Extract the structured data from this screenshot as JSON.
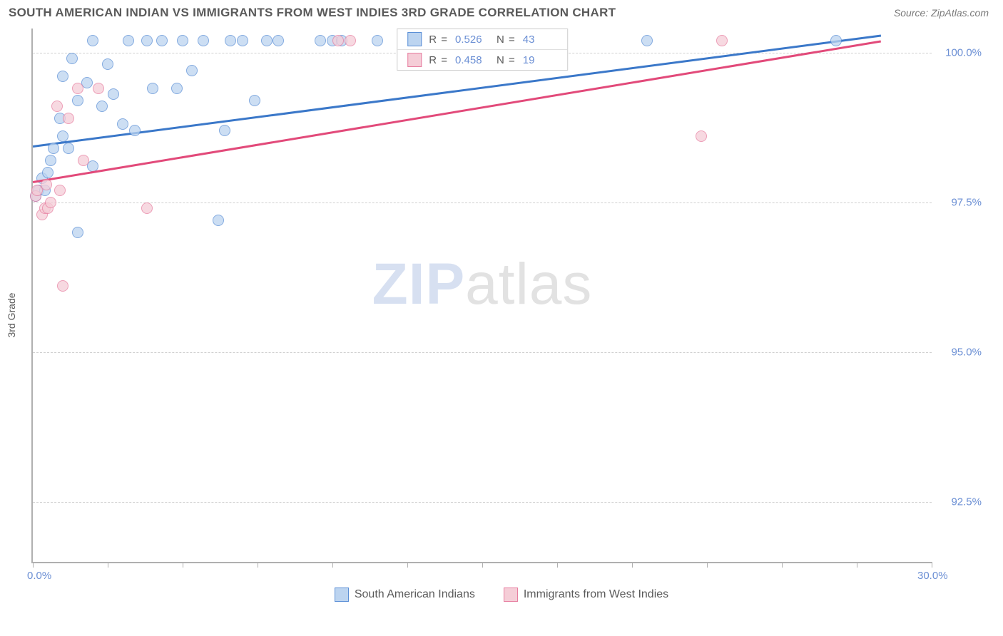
{
  "header": {
    "title": "SOUTH AMERICAN INDIAN VS IMMIGRANTS FROM WEST INDIES 3RD GRADE CORRELATION CHART",
    "source": "Source: ZipAtlas.com"
  },
  "chart": {
    "type": "scatter",
    "yaxis_title": "3rd Grade",
    "xlim": [
      0,
      30
    ],
    "ylim": [
      91.5,
      100.4
    ],
    "xtick_label_left": "0.0%",
    "xtick_label_right": "30.0%",
    "xticks": [
      0,
      2.5,
      5,
      7.5,
      10,
      12.5,
      15,
      17.5,
      20,
      22.5,
      25,
      27.5,
      30
    ],
    "yticks": [
      {
        "v": 100.0,
        "label": "100.0%"
      },
      {
        "v": 97.5,
        "label": "97.5%"
      },
      {
        "v": 95.0,
        "label": "95.0%"
      },
      {
        "v": 92.5,
        "label": "92.5%"
      }
    ],
    "grid_color": "#d0d0d0",
    "axis_color": "#b0b0b0",
    "background_color": "#ffffff",
    "marker_radius": 8,
    "series": [
      {
        "name": "South American Indians",
        "fill": "#bcd4f0",
        "stroke": "#5b8fd6",
        "stats": {
          "R": "0.526",
          "N": "43"
        },
        "trend": {
          "x1": 0,
          "y1": 98.45,
          "x2": 28.3,
          "y2": 100.3,
          "color": "#3b78c9"
        },
        "points": [
          [
            0.1,
            97.6
          ],
          [
            0.2,
            97.7
          ],
          [
            0.3,
            97.9
          ],
          [
            0.4,
            97.7
          ],
          [
            0.5,
            98.0
          ],
          [
            0.6,
            98.2
          ],
          [
            0.7,
            98.4
          ],
          [
            0.9,
            98.9
          ],
          [
            1.0,
            98.6
          ],
          [
            1.0,
            99.6
          ],
          [
            1.2,
            98.4
          ],
          [
            1.3,
            99.9
          ],
          [
            1.5,
            97.0
          ],
          [
            1.5,
            99.2
          ],
          [
            1.8,
            99.5
          ],
          [
            2.0,
            98.1
          ],
          [
            2.0,
            100.2
          ],
          [
            2.3,
            99.1
          ],
          [
            2.5,
            99.8
          ],
          [
            2.7,
            99.3
          ],
          [
            3.0,
            98.8
          ],
          [
            3.2,
            100.2
          ],
          [
            3.4,
            98.7
          ],
          [
            3.8,
            100.2
          ],
          [
            4.0,
            99.4
          ],
          [
            4.3,
            100.2
          ],
          [
            4.8,
            99.4
          ],
          [
            5.0,
            100.2
          ],
          [
            5.3,
            99.7
          ],
          [
            5.7,
            100.2
          ],
          [
            6.2,
            97.2
          ],
          [
            6.4,
            98.7
          ],
          [
            6.6,
            100.2
          ],
          [
            7.0,
            100.2
          ],
          [
            7.4,
            99.2
          ],
          [
            7.8,
            100.2
          ],
          [
            8.2,
            100.2
          ],
          [
            9.6,
            100.2
          ],
          [
            10.0,
            100.2
          ],
          [
            10.3,
            100.2
          ],
          [
            11.5,
            100.2
          ],
          [
            20.5,
            100.2
          ],
          [
            26.8,
            100.2
          ]
        ]
      },
      {
        "name": "Immigrants from West Indies",
        "fill": "#f5cdd7",
        "stroke": "#e77ea0",
        "stats": {
          "R": "0.458",
          "N": "19"
        },
        "trend": {
          "x1": 0,
          "y1": 97.85,
          "x2": 28.3,
          "y2": 100.2,
          "color": "#e24a7a"
        },
        "points": [
          [
            0.1,
            97.6
          ],
          [
            0.15,
            97.7
          ],
          [
            0.3,
            97.3
          ],
          [
            0.4,
            97.4
          ],
          [
            0.45,
            97.8
          ],
          [
            0.5,
            97.4
          ],
          [
            0.6,
            97.5
          ],
          [
            0.8,
            99.1
          ],
          [
            0.9,
            97.7
          ],
          [
            1.0,
            96.1
          ],
          [
            1.2,
            98.9
          ],
          [
            1.5,
            99.4
          ],
          [
            1.7,
            98.2
          ],
          [
            2.2,
            99.4
          ],
          [
            3.8,
            97.4
          ],
          [
            10.2,
            100.2
          ],
          [
            10.6,
            100.2
          ],
          [
            22.3,
            98.6
          ],
          [
            23.0,
            100.2
          ]
        ]
      }
    ],
    "legend_bottom": [
      {
        "swatch_fill": "#bcd4f0",
        "swatch_stroke": "#5b8fd6",
        "label": "South American Indians"
      },
      {
        "swatch_fill": "#f5cdd7",
        "swatch_stroke": "#e77ea0",
        "label": "Immigrants from West Indies"
      }
    ],
    "watermark": {
      "part1": "ZIP",
      "part2": "atlas"
    }
  }
}
